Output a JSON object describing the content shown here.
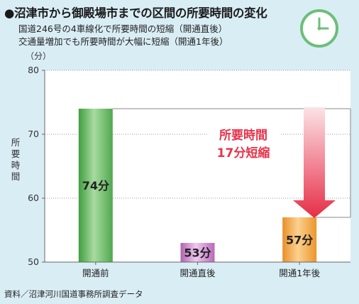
{
  "header": {
    "title": "●沼津市から御殿場市までの区間の所要時間の変化",
    "subtitle_1": "国道246号の4車線化で所要時間の短縮（開通直後）",
    "subtitle_2": "交通量増加でも所要時間が大幅に短縮（開通1年後）"
  },
  "source": "資料／沼津河川国道事務所調査データ",
  "icon": {
    "name": "clock-icon",
    "color": "#6cbf7a"
  },
  "chart_data": {
    "type": "bar",
    "categories": [
      "開通前",
      "開通直後",
      "開通1年後"
    ],
    "values": [
      74,
      53,
      57
    ],
    "value_labels": [
      "74分",
      "53分",
      "57分"
    ],
    "y_unit": "（分）",
    "ylabel": "所要時間",
    "ylim": [
      50,
      80
    ],
    "yticks": [
      50,
      60,
      70,
      80
    ],
    "grid": "dotted horizontal",
    "bar_colors": [
      "#5cb85c",
      "#c97ec9",
      "#f2a53a"
    ],
    "annotation": {
      "lines": [
        "所要時間",
        "17分短縮"
      ],
      "color": "#e8334a"
    }
  }
}
